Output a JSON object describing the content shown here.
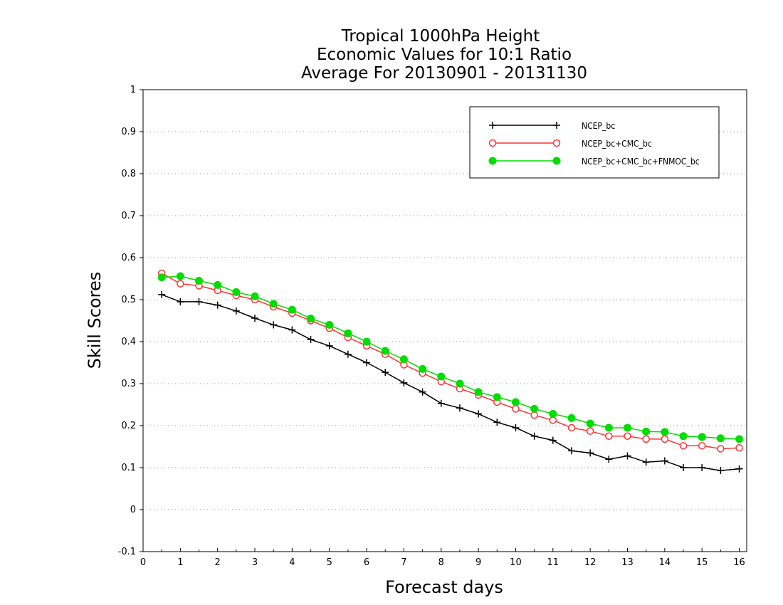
{
  "chart_data": {
    "type": "line",
    "title_lines": [
      "Tropical 1000hPa Height",
      "Economic Values for 10:1 Ratio",
      "Average For 20130901 - 20131130"
    ],
    "xlabel": "Forecast days",
    "ylabel": "Skill Scores",
    "xlim": [
      0,
      16.2
    ],
    "ylim": [
      -0.1,
      1
    ],
    "x_ticks": [
      "0",
      "1",
      "2",
      "3",
      "4",
      "5",
      "6",
      "7",
      "8",
      "9",
      "10",
      "11",
      "12",
      "13",
      "14",
      "15",
      "16"
    ],
    "y_ticks": [
      "1",
      "0.9",
      "0.8",
      "0.7",
      "0.6",
      "0.5",
      "0.4",
      "0.3",
      "0.2",
      "0.1",
      "0",
      "-0.1"
    ],
    "grid": "horizontal dotted",
    "legend_position": "top-right",
    "x": [
      0.5,
      1,
      1.5,
      2,
      2.5,
      3,
      3.5,
      4,
      4.5,
      5,
      5.5,
      6,
      6.5,
      7,
      7.5,
      8,
      8.5,
      9,
      9.5,
      10,
      10.5,
      11,
      11.5,
      12,
      12.5,
      13,
      13.5,
      14,
      14.5,
      15,
      15.5,
      16
    ],
    "series": [
      {
        "name": "NCEP_bc",
        "color": "#000000",
        "marker": "plus",
        "values": [
          0.512,
          0.495,
          0.495,
          0.487,
          0.473,
          0.456,
          0.44,
          0.428,
          0.405,
          0.39,
          0.37,
          0.35,
          0.327,
          0.302,
          0.28,
          0.253,
          0.242,
          0.228,
          0.208,
          0.195,
          0.175,
          0.165,
          0.14,
          0.135,
          0.12,
          0.128,
          0.113,
          0.116,
          0.1,
          0.1,
          0.093,
          0.097
        ]
      },
      {
        "name": "NCEP_bc+CMC_bc",
        "color": "#ff3333",
        "marker": "open-circle",
        "values": [
          0.563,
          0.538,
          0.533,
          0.522,
          0.51,
          0.5,
          0.483,
          0.468,
          0.45,
          0.432,
          0.41,
          0.39,
          0.37,
          0.345,
          0.325,
          0.305,
          0.288,
          0.273,
          0.256,
          0.24,
          0.225,
          0.213,
          0.195,
          0.187,
          0.175,
          0.175,
          0.168,
          0.168,
          0.152,
          0.152,
          0.145,
          0.147
        ]
      },
      {
        "name": "NCEP_bc+CMC_bc+FNMOC_bc",
        "color": "#00dd00",
        "marker": "filled-circle",
        "values": [
          0.553,
          0.556,
          0.545,
          0.535,
          0.518,
          0.508,
          0.49,
          0.476,
          0.455,
          0.44,
          0.42,
          0.4,
          0.378,
          0.358,
          0.335,
          0.317,
          0.3,
          0.28,
          0.268,
          0.256,
          0.24,
          0.228,
          0.218,
          0.205,
          0.195,
          0.195,
          0.186,
          0.185,
          0.175,
          0.173,
          0.17,
          0.168
        ]
      }
    ]
  }
}
